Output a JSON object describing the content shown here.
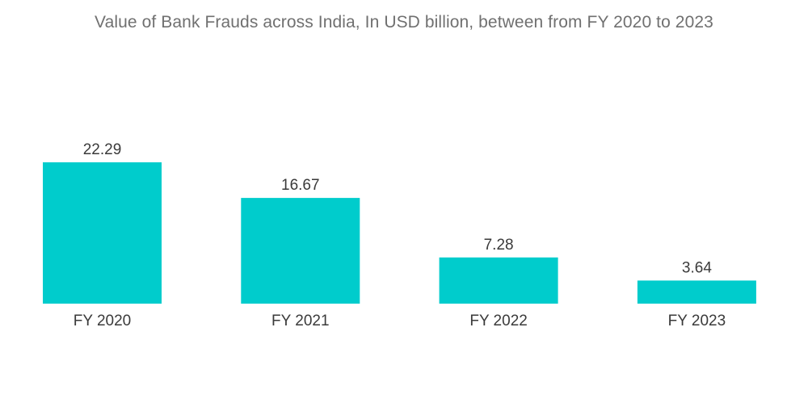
{
  "chart_data": {
    "type": "bar",
    "title": "Value of Bank Frauds across India, In USD billion, between from FY 2020 to 2023",
    "categories": [
      "FY 2020",
      "FY 2021",
      "FY 2022",
      "FY 2023"
    ],
    "values": [
      22.29,
      16.67,
      7.28,
      3.64
    ],
    "value_labels": [
      "22.29",
      "16.67",
      "7.28",
      "3.64"
    ],
    "xlabel": "",
    "ylabel": "",
    "ylim": [
      0,
      22.29
    ],
    "grid": false,
    "legend": "none",
    "bar_color": "#00CCCC"
  }
}
